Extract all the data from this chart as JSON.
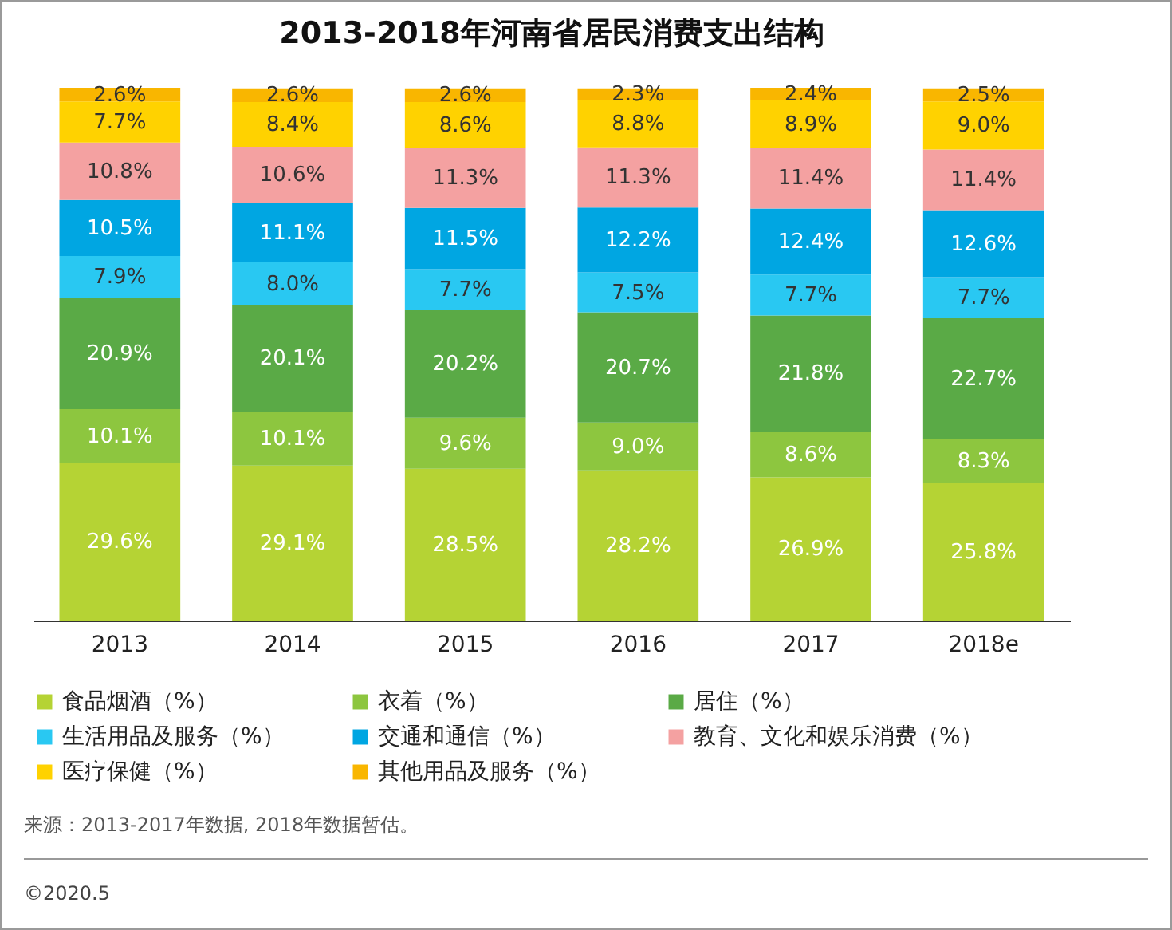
{
  "chart_data": {
    "type": "bar",
    "title": "2013-2018年河南省居民消费支出结构",
    "stacked": true,
    "legend": "bottom",
    "tick_labels": "x",
    "categories": [
      "2013",
      "2014",
      "2015",
      "2016",
      "2017",
      "2018e"
    ],
    "series": [
      {
        "name": "食品烟酒（%）",
        "color": "#b5d334",
        "values": [
          29.6,
          29.1,
          28.5,
          28.2,
          26.9,
          25.8
        ],
        "value_labels": [
          "29.6%",
          "29.1%",
          "28.5%",
          "28.2%",
          "26.9%",
          "25.8%"
        ]
      },
      {
        "name": "衣着（%）",
        "color": "#8dc63f",
        "values": [
          10.1,
          10.1,
          9.6,
          9.0,
          8.6,
          8.3
        ],
        "value_labels": [
          "10.1%",
          "10.1%",
          "9.6%",
          "9.0%",
          "8.6%",
          "8.3%"
        ]
      },
      {
        "name": "居住（%）",
        "color": "#5aaa46",
        "values": [
          20.9,
          20.1,
          20.2,
          20.7,
          21.8,
          22.7
        ],
        "value_labels": [
          "20.9%",
          "20.1%",
          "20.2%",
          "20.7%",
          "21.8%",
          "22.7%"
        ]
      },
      {
        "name": "生活用品及服务（%）",
        "color": "#29c8f2",
        "values": [
          7.9,
          8.0,
          7.7,
          7.5,
          7.7,
          7.7
        ],
        "value_labels": [
          "7.9%",
          "8.0%",
          "7.7%",
          "7.5%",
          "7.7%",
          "7.7%"
        ]
      },
      {
        "name": "交通和通信（%）",
        "color": "#00a6e2",
        "values": [
          10.5,
          11.1,
          11.5,
          12.2,
          12.4,
          12.6
        ],
        "value_labels": [
          "10.5%",
          "11.1%",
          "11.5%",
          "12.2%",
          "12.4%",
          "12.6%"
        ]
      },
      {
        "name": "教育、文化和娱乐消费（%）",
        "color": "#f4a1a1",
        "values": [
          10.8,
          10.6,
          11.3,
          11.3,
          11.4,
          11.4
        ],
        "value_labels": [
          "10.8%",
          "10.6%",
          "11.3%",
          "11.3%",
          "11.4%",
          "11.4%"
        ]
      },
      {
        "name": "医疗保健（%）",
        "color": "#ffd200",
        "values": [
          7.7,
          8.4,
          8.6,
          8.8,
          8.9,
          9.0
        ],
        "value_labels": [
          "7.7%",
          "8.4%",
          "8.6%",
          "8.8%",
          "8.9%",
          "9.0%"
        ]
      },
      {
        "name": "其他用品及服务（%）",
        "color": "#f9b600",
        "values": [
          2.6,
          2.6,
          2.6,
          2.3,
          2.4,
          2.5
        ],
        "value_labels": [
          "2.6%",
          "2.6%",
          "2.6%",
          "2.3%",
          "2.4%",
          "2.5%"
        ]
      }
    ],
    "annotations": [
      "来源：2013-2017年数据, 2018年数据暂估。",
      "©2020.5"
    ]
  }
}
